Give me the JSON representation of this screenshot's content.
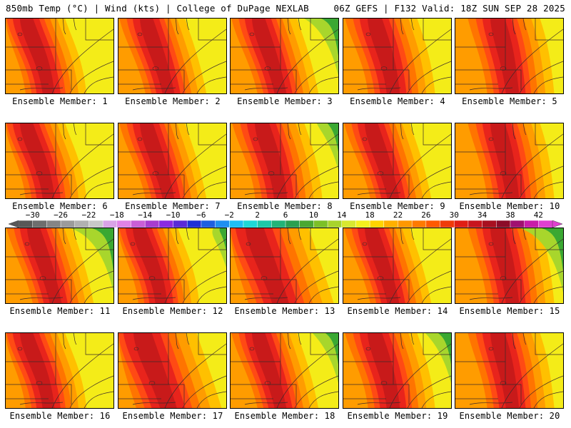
{
  "header": {
    "left": "850mb Temp (°C) | Wind (kts) | College of DuPage NEXLAB",
    "right": "06Z GEFS | F132 Valid: 18Z SUN SEP 28 2025"
  },
  "panels": [
    {
      "label": "Ensemble Member: 1",
      "member": 1,
      "core": "ws",
      "green": 0
    },
    {
      "label": "Ensemble Member: 2",
      "member": 2,
      "core": "w",
      "green": 0
    },
    {
      "label": "Ensemble Member: 3",
      "member": 3,
      "core": "w",
      "green": 0.8
    },
    {
      "label": "Ensemble Member: 4",
      "member": 4,
      "core": "wc",
      "green": 0
    },
    {
      "label": "Ensemble Member: 5",
      "member": 5,
      "core": "c",
      "green": 0
    },
    {
      "label": "Ensemble Member: 6",
      "member": 6,
      "core": "ws",
      "green": 0
    },
    {
      "label": "Ensemble Member: 7",
      "member": 7,
      "core": "w",
      "green": 0
    },
    {
      "label": "Ensemble Member: 8",
      "member": 8,
      "core": "wc",
      "green": 0.5
    },
    {
      "label": "Ensemble Member: 9",
      "member": 9,
      "core": "w",
      "green": 0
    },
    {
      "label": "Ensemble Member: 10",
      "member": 10,
      "core": "c",
      "green": 0
    },
    {
      "label": "Ensemble Member: 11",
      "member": 11,
      "core": "w",
      "green": 1.0
    },
    {
      "label": "Ensemble Member: 12",
      "member": 12,
      "core": "ws",
      "green": 0.3
    },
    {
      "label": "Ensemble Member: 13",
      "member": 13,
      "core": "wide",
      "green": 0
    },
    {
      "label": "Ensemble Member: 14",
      "member": 14,
      "core": "w",
      "green": 0
    },
    {
      "label": "Ensemble Member: 15",
      "member": 15,
      "core": "c",
      "green": 1.0
    },
    {
      "label": "Ensemble Member: 16",
      "member": 16,
      "core": "ws",
      "green": 0
    },
    {
      "label": "Ensemble Member: 17",
      "member": 17,
      "core": "wide",
      "green": 0
    },
    {
      "label": "Ensemble Member: 18",
      "member": 18,
      "core": "w",
      "green": 0.6
    },
    {
      "label": "Ensemble Member: 19",
      "member": 19,
      "core": "wc",
      "green": 0.6
    },
    {
      "label": "Ensemble Member: 20",
      "member": 20,
      "core": "c",
      "green": 0
    }
  ],
  "colorbar": {
    "tick_labels": [
      "−30",
      "−26",
      "−22",
      "−18",
      "−14",
      "−10",
      "−6",
      "−2",
      "2",
      "6",
      "10",
      "14",
      "18",
      "22",
      "26",
      "30",
      "34",
      "38",
      "42"
    ],
    "min": -32,
    "max": 44,
    "step": 2,
    "colors": [
      "#585858",
      "#6e6e6e",
      "#858585",
      "#9b9b9b",
      "#b1b1b1",
      "#c8c8c8",
      "#d9a3e6",
      "#e083e6",
      "#c95fd8",
      "#a83dd0",
      "#8a2be2",
      "#5a2bd8",
      "#1e2fd6",
      "#1e5fe0",
      "#1e8ff0",
      "#1ebff4",
      "#1ed8d8",
      "#1ec8a8",
      "#22b478",
      "#2aa050",
      "#4aa832",
      "#7cc028",
      "#a8d42c",
      "#d8e830",
      "#f4f01e",
      "#ffd400",
      "#ffb000",
      "#ff9800",
      "#ff7a00",
      "#ff5a00",
      "#f03a0a",
      "#e01e14",
      "#c8141e",
      "#a81020",
      "#8c0c28",
      "#a01070",
      "#c81ca8",
      "#e040d0"
    ],
    "arrows": "both"
  },
  "map_palette": {
    "green": "#3aa832",
    "ltgreen": "#a8d62c",
    "yellow": "#f4ec18",
    "ltorange": "#ffc000",
    "orange": "#ff9c00",
    "dkorange": "#ff7400",
    "redorange": "#ff4a14",
    "red": "#e8241c",
    "dkred": "#c81a1a",
    "lines": "#3a2a2a"
  }
}
